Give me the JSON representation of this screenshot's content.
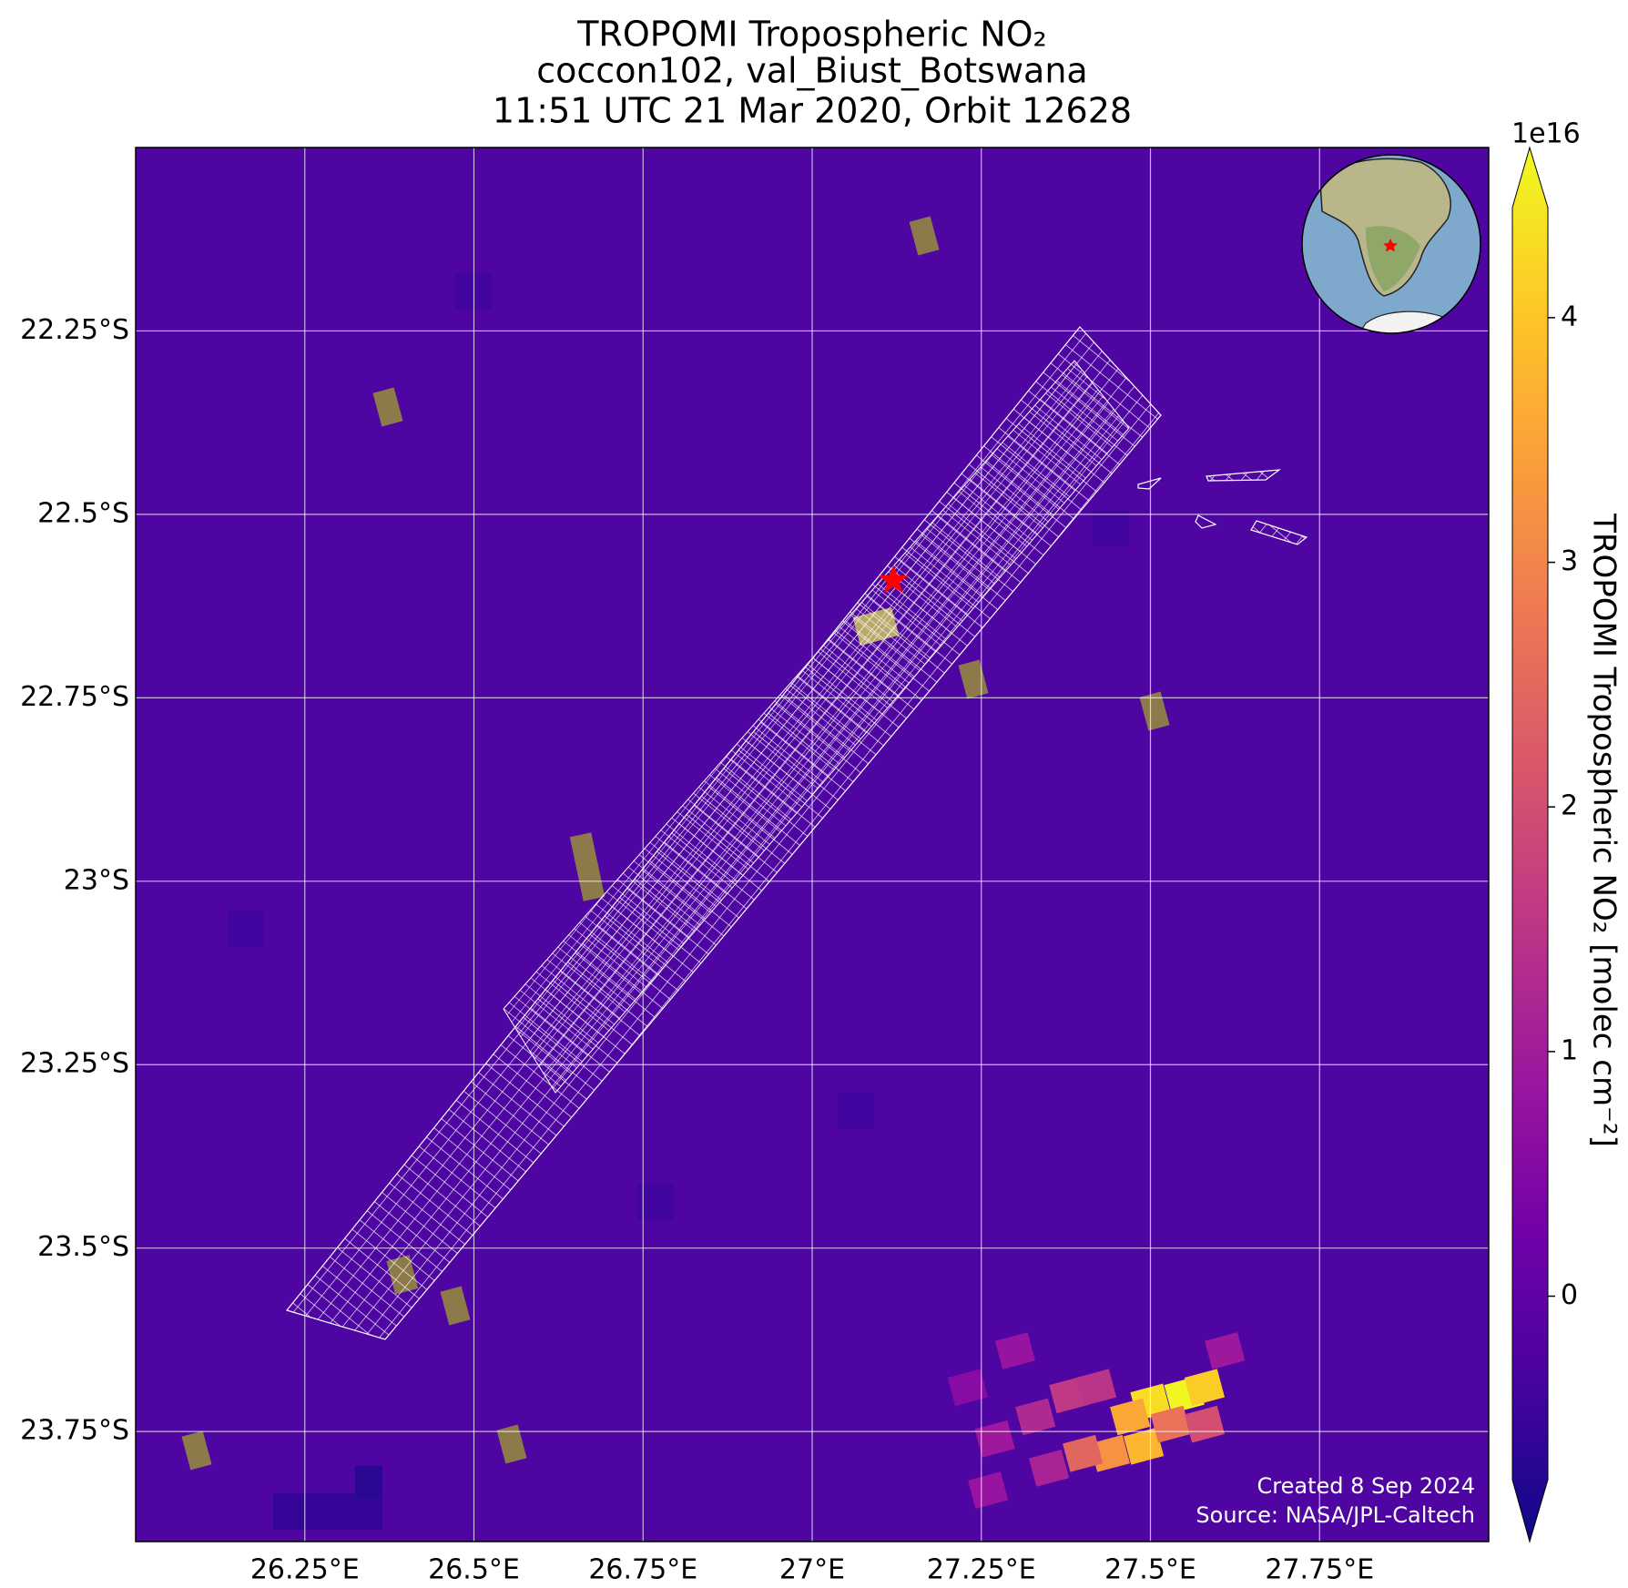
{
  "chart_data": {
    "type": "map",
    "title_lines": [
      "TROPOMI Tropospheric NO₂",
      "coccon102, val_Biust_Botswana",
      "11:51 UTC 21 Mar 2020, Orbit 12628"
    ],
    "xlim": [
      26,
      28
    ],
    "ylim": [
      -22,
      -23.9
    ],
    "xticks": [
      {
        "value": 26.25,
        "label": "26.25°E"
      },
      {
        "value": 26.5,
        "label": "26.5°E"
      },
      {
        "value": 26.75,
        "label": "26.75°E"
      },
      {
        "value": 27,
        "label": "27°E"
      },
      {
        "value": 27.25,
        "label": "27.25°E"
      },
      {
        "value": 27.5,
        "label": "27.5°E"
      },
      {
        "value": 27.75,
        "label": "27.75°E"
      }
    ],
    "yticks": [
      {
        "value": -22.25,
        "label": "22.25°S"
      },
      {
        "value": -22.5,
        "label": "22.5°S"
      },
      {
        "value": -22.75,
        "label": "22.75°S"
      },
      {
        "value": -23,
        "label": "23°S"
      },
      {
        "value": -23.25,
        "label": "23.25°S"
      },
      {
        "value": -23.5,
        "label": "23.5°S"
      },
      {
        "value": -23.75,
        "label": "23.75°S"
      }
    ],
    "grid": true,
    "colormap": "plasma",
    "colorbar": {
      "label": "TROPOMI Tropospheric NO₂ [molec cm⁻²]",
      "offset_label": "1e16",
      "clim": [
        -0.75,
        4.45
      ],
      "ticks": [
        0,
        1,
        2,
        3,
        4
      ]
    },
    "site": {
      "lon": 27.12,
      "lat": -22.59,
      "color": "#ff0000"
    },
    "cells": {
      "lon": [
        27.55,
        27.5,
        27.58,
        27.47,
        27.49,
        27.44,
        27.4,
        27.53,
        27.58,
        27.38,
        27.33,
        27.42,
        27.35,
        27.27,
        27.3,
        27.26,
        27.61,
        27.23
      ],
      "lat": [
        -23.7,
        -23.71,
        -23.69,
        -23.73,
        -23.77,
        -23.78,
        -23.78,
        -23.74,
        -23.74,
        -23.7,
        -23.73,
        -23.69,
        -23.8,
        -23.76,
        -23.64,
        -23.83,
        -23.64,
        -23.69
      ],
      "values": [
        4.4,
        4.1,
        3.9,
        3.4,
        3.6,
        3.1,
        2.4,
        2.6,
        2.0,
        1.6,
        1.3,
        1.5,
        1.2,
        1.0,
        0.9,
        0.9,
        1.0,
        0.7
      ]
    },
    "credits": [
      "Created 8 Sep 2024",
      "Source: NASA/JPL-Caltech"
    ]
  }
}
